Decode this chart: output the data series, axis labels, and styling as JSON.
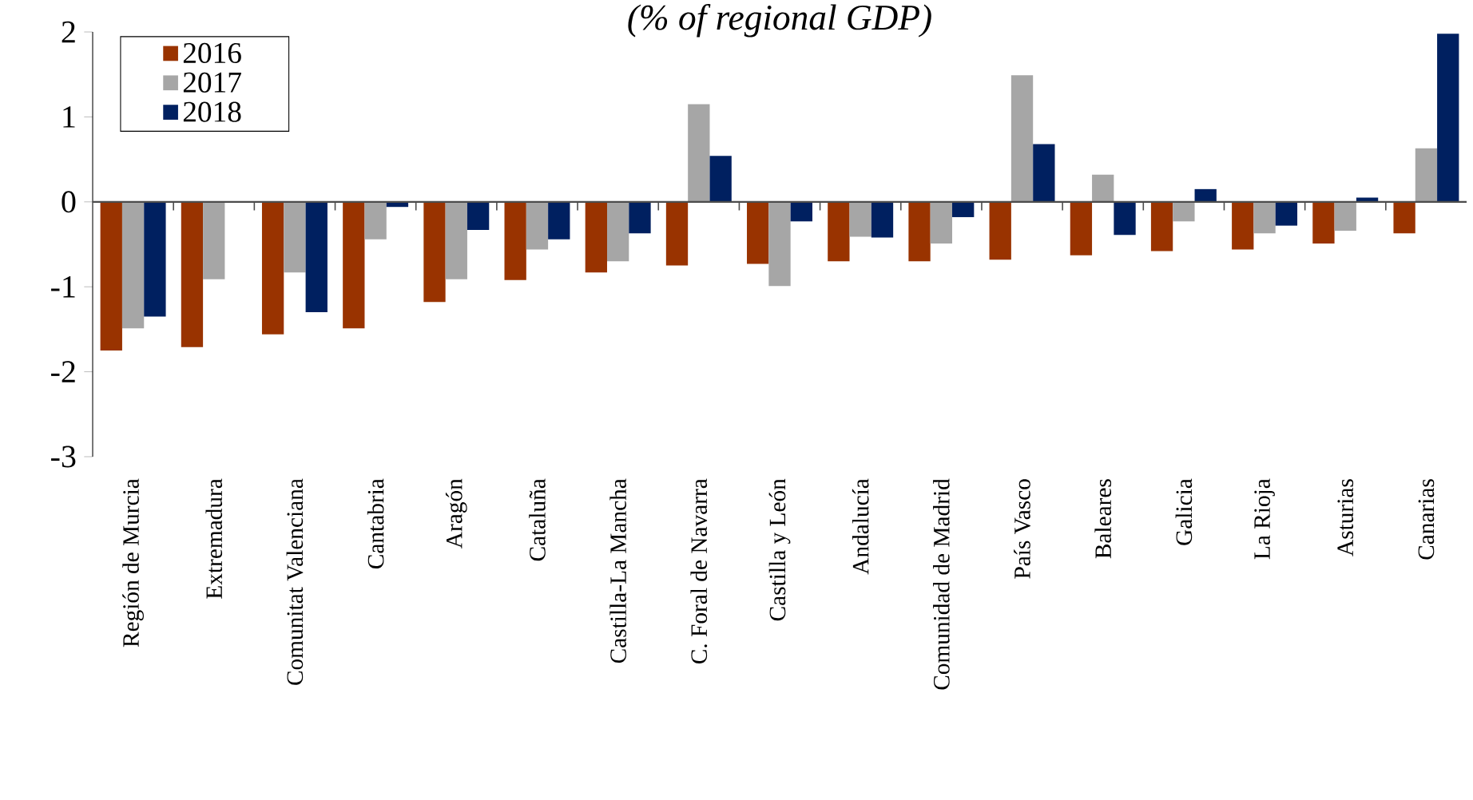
{
  "chart_data": {
    "type": "bar",
    "title": "(% of regional GDP)",
    "categories": [
      "Región de Murcia",
      "Extremadura",
      "Comunitat Valenciana",
      "Cantabria",
      "Aragón",
      "Cataluña",
      "Castilla-La Mancha",
      "C. Foral de Navarra",
      "Castilla y León",
      "Andalucía",
      "Comunidad de Madrid",
      "País Vasco",
      "Baleares",
      "Galicia",
      "La Rioja",
      "Asturias",
      "Canarias"
    ],
    "series": [
      {
        "name": "2016",
        "color": "#993300",
        "values": [
          -1.75,
          -1.71,
          -1.56,
          -1.49,
          -1.18,
          -0.92,
          -0.83,
          -0.75,
          -0.73,
          -0.7,
          -0.7,
          -0.68,
          -0.63,
          -0.58,
          -0.56,
          -0.49,
          -0.37
        ]
      },
      {
        "name": "2017",
        "color": "#a6a6a6",
        "values": [
          -1.49,
          -0.91,
          -0.83,
          -0.44,
          -0.91,
          -0.56,
          -0.7,
          1.15,
          -0.99,
          -0.41,
          -0.49,
          1.49,
          0.32,
          -0.23,
          -0.37,
          -0.34,
          0.63
        ]
      },
      {
        "name": "2018",
        "color": "#002060",
        "values": [
          -1.35,
          null,
          -1.3,
          -0.06,
          -0.33,
          -0.44,
          -0.37,
          0.54,
          -0.23,
          -0.42,
          -0.18,
          0.68,
          -0.39,
          0.15,
          -0.28,
          0.05,
          1.98
        ]
      }
    ],
    "ylim": [
      -3,
      2
    ],
    "yticks": [
      -3,
      -2,
      -1,
      0,
      1,
      2
    ],
    "legend": "top left"
  }
}
